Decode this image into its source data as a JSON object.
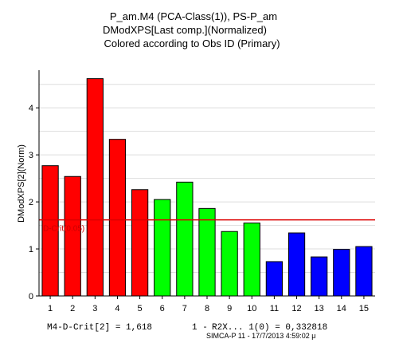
{
  "chart_data": {
    "type": "bar",
    "title_lines": [
      "P_am.M4 (PCA-Class(1)), PS-P_am",
      "DModXPS[Last comp.](Normalized)",
      "Colored according to Obs ID (Primary)"
    ],
    "xlabel": "",
    "ylabel": "DModXPS[2](Norm)",
    "categories": [
      "1",
      "2",
      "3",
      "4",
      "5",
      "6",
      "7",
      "8",
      "9",
      "10",
      "11",
      "12",
      "13",
      "14",
      "15"
    ],
    "values": [
      2.77,
      2.54,
      4.62,
      3.33,
      2.26,
      2.05,
      2.42,
      1.86,
      1.37,
      1.55,
      0.73,
      1.34,
      0.83,
      0.99,
      1.05
    ],
    "colors": [
      "#ff0000",
      "#ff0000",
      "#ff0000",
      "#ff0000",
      "#ff0000",
      "#00ff00",
      "#00ff00",
      "#00ff00",
      "#00ff00",
      "#00ff00",
      "#0000ff",
      "#0000ff",
      "#0000ff",
      "#0000ff",
      "#0000ff"
    ],
    "ylim": [
      0,
      4.8
    ],
    "yticks": [
      0,
      1,
      2,
      3,
      4
    ],
    "grid": "horizontal",
    "critical_value": 1.618,
    "critical_color": "#dd0000",
    "critical_label": "D-Crit(0.05)",
    "footer_left": "M4-D-Crit[2] = 1,618",
    "footer_middle": "1 - ",
    "footer_partial": "R2X... 1(0) = 0,332818",
    "footer_stamp": "SIMCA-P 11 - 17/7/2013 4:59:02 μ"
  }
}
